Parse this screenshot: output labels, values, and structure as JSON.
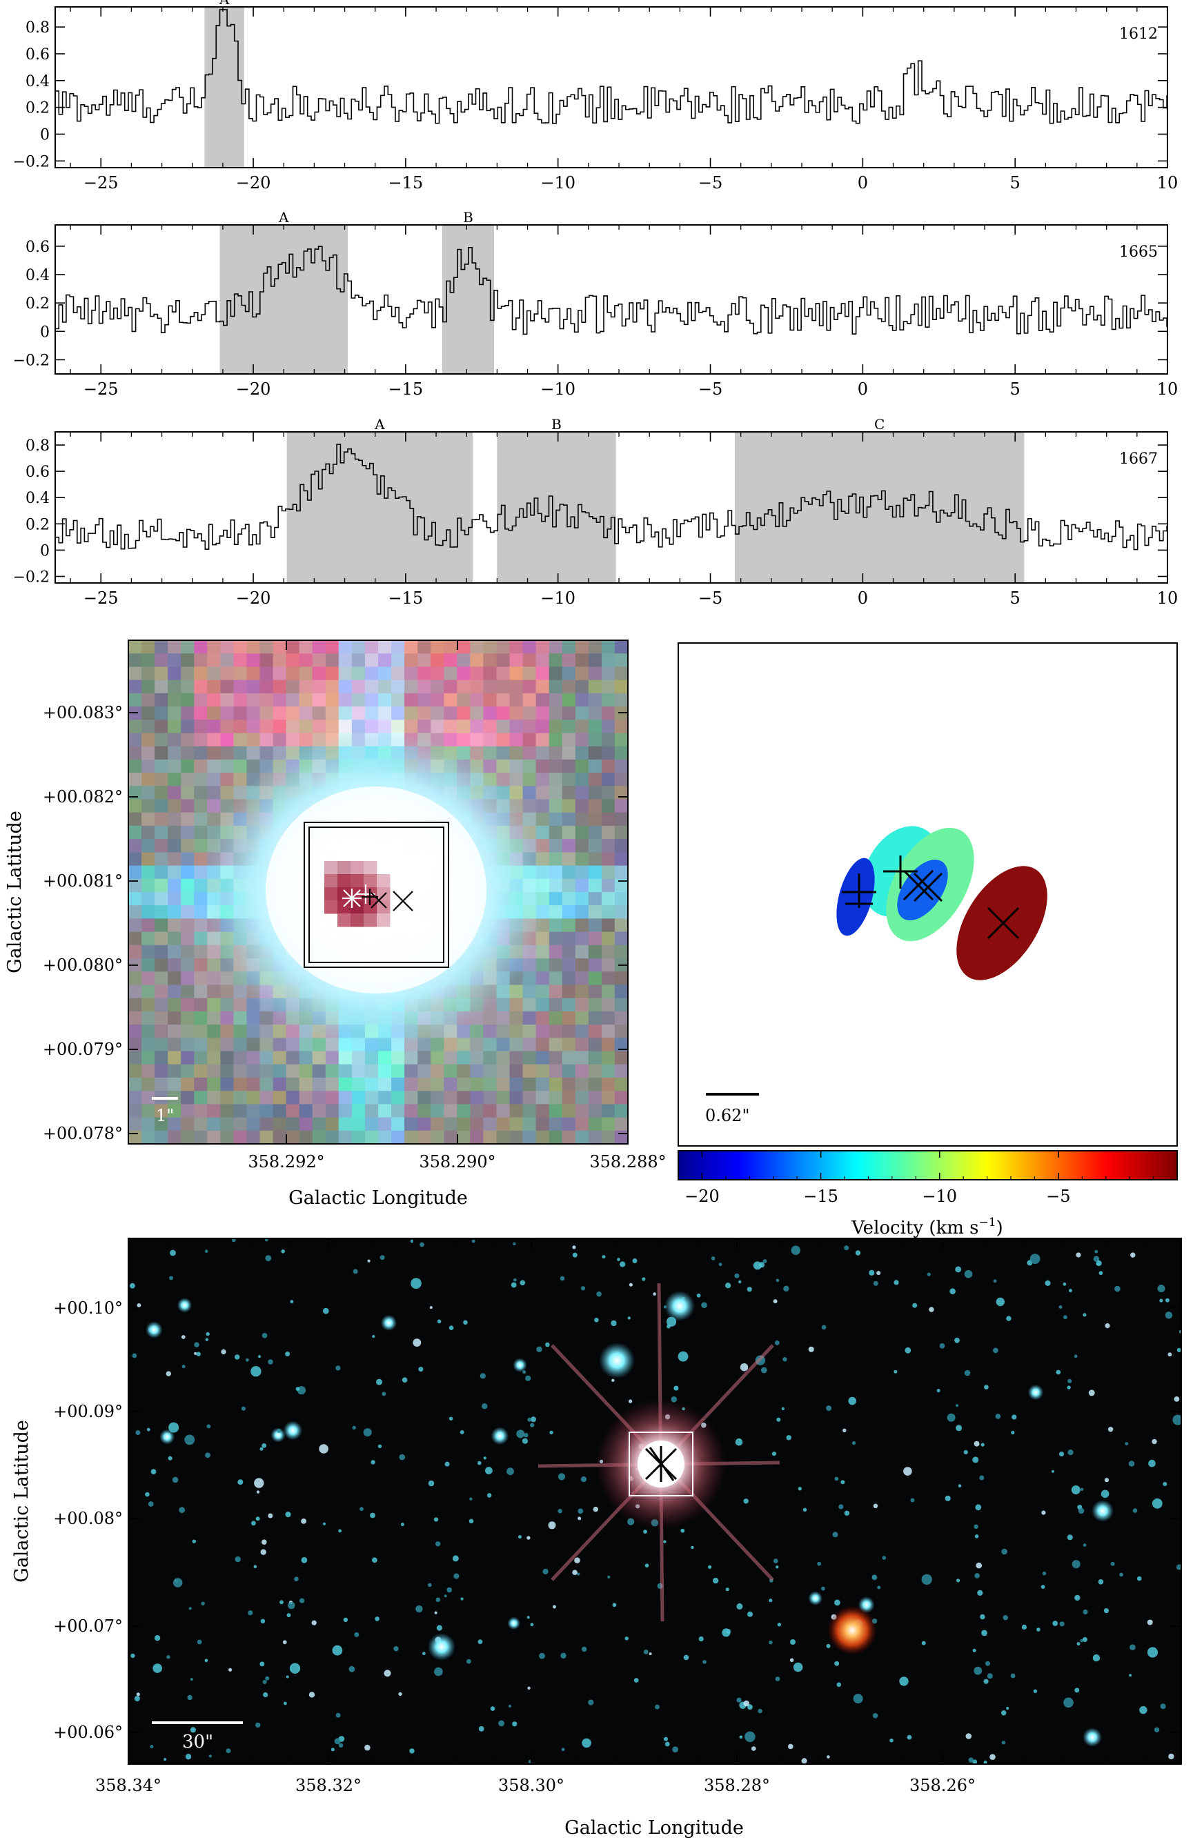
{
  "chart_data": [
    {
      "type": "line",
      "panel": "spectrum-1612",
      "label": "1612",
      "xlim": [
        -26.5,
        10
      ],
      "ylim": [
        -0.25,
        0.95
      ],
      "xticks": [
        -25,
        -20,
        -15,
        -10,
        -5,
        0,
        5,
        10
      ],
      "yticks": [
        -0.2,
        0,
        0.2,
        0.4,
        0.6,
        0.8
      ],
      "bands": [
        {
          "name": "A",
          "x0": -21.6,
          "x1": -20.3
        }
      ],
      "base": 0.22,
      "noise": 0.14,
      "peaks": [
        {
          "x": -21.0,
          "h": 0.68,
          "w": 0.35
        },
        {
          "x": 1.8,
          "h": 0.22,
          "w": 0.35
        }
      ]
    },
    {
      "type": "line",
      "panel": "spectrum-1665",
      "label": "1665",
      "xlim": [
        -26.5,
        10
      ],
      "ylim": [
        -0.3,
        0.75
      ],
      "xticks": [
        -25,
        -20,
        -15,
        -10,
        -5,
        0,
        5,
        10
      ],
      "yticks": [
        -0.2,
        0,
        0.2,
        0.4,
        0.6
      ],
      "bands": [
        {
          "name": "A",
          "x0": -21.1,
          "x1": -16.9
        },
        {
          "name": "B",
          "x0": -13.8,
          "x1": -12.1
        }
      ],
      "base": 0.12,
      "noise": 0.14,
      "peaks": [
        {
          "x": -18.2,
          "h": 0.42,
          "w": 1.1
        },
        {
          "x": -13.0,
          "h": 0.45,
          "w": 0.4
        }
      ]
    },
    {
      "type": "line",
      "panel": "spectrum-1667",
      "label": "1667",
      "xlim": [
        -26.5,
        10
      ],
      "ylim": [
        -0.25,
        0.9
      ],
      "xticks": [
        -25,
        -20,
        -15,
        -10,
        -5,
        0,
        5,
        10
      ],
      "yticks": [
        -0.2,
        0,
        0.2,
        0.4,
        0.6,
        0.8
      ],
      "bands": [
        {
          "name": "A",
          "x0": -18.9,
          "x1": -12.8
        },
        {
          "name": "B",
          "x0": -12.0,
          "x1": -8.1
        },
        {
          "name": "C",
          "x0": -4.2,
          "x1": 5.3
        }
      ],
      "base": 0.12,
      "noise": 0.12,
      "peaks": [
        {
          "x": -17.0,
          "h": 0.6,
          "w": 1.2
        },
        {
          "x": -10.5,
          "h": 0.18,
          "w": 1.3
        },
        {
          "x": -0.5,
          "h": 0.22,
          "w": 2.5
        },
        {
          "x": 3.0,
          "h": 0.1,
          "w": 1.5
        }
      ]
    },
    {
      "type": "heatmap",
      "panel": "zoom-image",
      "xlabel": "Galactic Longitude",
      "ylabel": "Galactic Latitude",
      "xticks": [
        "358.292°",
        "358.290°",
        "358.288°"
      ],
      "yticks": [
        "+00.083°",
        "+00.082°",
        "+00.081°",
        "+00.080°",
        "+00.079°",
        "+00.078°"
      ],
      "scalebar": "1\""
    },
    {
      "type": "scatter",
      "panel": "maser-velocity-map",
      "scalebar": "0.62\"",
      "colorbar_label": "Velocity (km s",
      "colorbar_label_sup": "−1",
      "colorbar_label_end": ")",
      "colorbar_ticks": [
        "−20",
        "−15",
        "−10",
        "−5"
      ],
      "colorbar_tick_values": [
        -20,
        -15,
        -10,
        -5
      ],
      "colorbar_range": [
        -21,
        0
      ],
      "ellipses": [
        {
          "velocity": -11.2,
          "color": "#33efdc"
        },
        {
          "velocity": -9.4,
          "color": "#6cf2a0"
        },
        {
          "velocity": -19.8,
          "color": "#0a32d8"
        },
        {
          "velocity": -16.8,
          "color": "#1060ee"
        },
        {
          "velocity": -1.3,
          "color": "#8a0c0c"
        }
      ]
    },
    {
      "type": "heatmap",
      "panel": "wide-image",
      "xlabel": "Galactic Longitude",
      "ylabel": "Galactic Latitude",
      "xticks": [
        "358.34°",
        "358.32°",
        "358.30°",
        "358.28°",
        "358.26°"
      ],
      "yticks": [
        "+00.10°",
        "+00.09°",
        "+00.08°",
        "+00.07°",
        "+00.06°"
      ],
      "scalebar": "30\""
    }
  ]
}
